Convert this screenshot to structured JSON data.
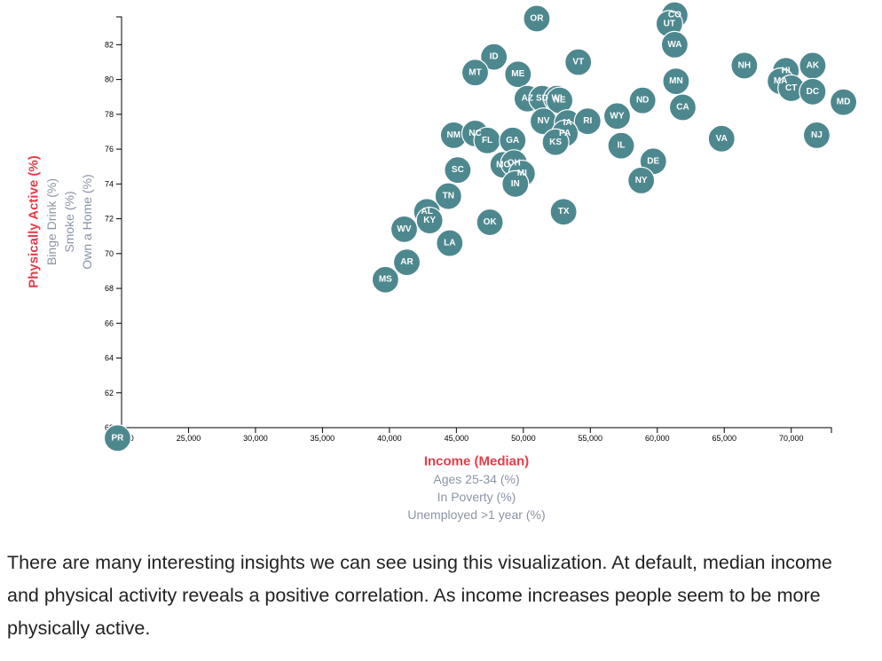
{
  "chart_data": {
    "type": "scatter",
    "x_axis": {
      "ticks": [
        20000,
        25000,
        30000,
        35000,
        40000,
        45000,
        50000,
        55000,
        60000,
        65000,
        70000
      ],
      "tick_labels": [
        "20,000",
        "25,000",
        "30,000",
        "35,000",
        "40,000",
        "45,000",
        "50,000",
        "55,000",
        "60,000",
        "65,000",
        "70,000"
      ],
      "range": [
        20000,
        73000
      ]
    },
    "y_axis": {
      "ticks": [
        60,
        62,
        64,
        66,
        68,
        70,
        72,
        74,
        76,
        78,
        80,
        82
      ],
      "tick_labels": [
        "60",
        "62",
        "64",
        "66",
        "68",
        "70",
        "72",
        "74",
        "76",
        "78",
        "80",
        "82"
      ],
      "range": [
        60,
        83.6
      ]
    },
    "x_labels": [
      {
        "text": "Income (Median)",
        "active": true
      },
      {
        "text": "Ages 25-34 (%)",
        "active": false
      },
      {
        "text": "In Poverty (%)",
        "active": false
      },
      {
        "text": "Unemployed >1 year (%)",
        "active": false
      }
    ],
    "y_labels": [
      {
        "text": "Physically Active (%)",
        "active": true
      },
      {
        "text": "Binge Drink (%)",
        "active": false
      },
      {
        "text": "Smoke (%)",
        "active": false
      },
      {
        "text": "Own a Home (%)",
        "active": false
      }
    ],
    "points": [
      {
        "state": "PR",
        "x": 19700,
        "y": 59.4
      },
      {
        "state": "OR",
        "x": 51000,
        "y": 83.5
      },
      {
        "state": "CO",
        "x": 61300,
        "y": 83.7
      },
      {
        "state": "UT",
        "x": 60900,
        "y": 83.2
      },
      {
        "state": "WA",
        "x": 61300,
        "y": 82.0
      },
      {
        "state": "ID",
        "x": 47800,
        "y": 81.3
      },
      {
        "state": "VT",
        "x": 54100,
        "y": 81.0
      },
      {
        "state": "MT",
        "x": 46400,
        "y": 80.4
      },
      {
        "state": "ME",
        "x": 49600,
        "y": 80.3
      },
      {
        "state": "NH",
        "x": 66500,
        "y": 80.8
      },
      {
        "state": "AK",
        "x": 71600,
        "y": 80.8
      },
      {
        "state": "HI",
        "x": 69600,
        "y": 80.5
      },
      {
        "state": "MA",
        "x": 69200,
        "y": 79.9
      },
      {
        "state": "CT",
        "x": 70000,
        "y": 79.5
      },
      {
        "state": "DC",
        "x": 71600,
        "y": 79.3
      },
      {
        "state": "MD",
        "x": 73900,
        "y": 78.7
      },
      {
        "state": "MN",
        "x": 61400,
        "y": 79.9
      },
      {
        "state": "ND",
        "x": 58900,
        "y": 78.8
      },
      {
        "state": "CA",
        "x": 61900,
        "y": 78.4
      },
      {
        "state": "AZ",
        "x": 50300,
        "y": 78.9
      },
      {
        "state": "SD",
        "x": 51400,
        "y": 78.9
      },
      {
        "state": "WI",
        "x": 52500,
        "y": 78.9
      },
      {
        "state": "NE",
        "x": 52700,
        "y": 78.8
      },
      {
        "state": "WY",
        "x": 57000,
        "y": 77.9
      },
      {
        "state": "NV",
        "x": 51500,
        "y": 77.6
      },
      {
        "state": "IA",
        "x": 53300,
        "y": 77.5
      },
      {
        "state": "RI",
        "x": 54800,
        "y": 77.6
      },
      {
        "state": "PA",
        "x": 53100,
        "y": 76.9
      },
      {
        "state": "KS",
        "x": 52400,
        "y": 76.4
      },
      {
        "state": "NM",
        "x": 44800,
        "y": 76.8
      },
      {
        "state": "NC",
        "x": 46400,
        "y": 76.9
      },
      {
        "state": "FL",
        "x": 47300,
        "y": 76.5
      },
      {
        "state": "GA",
        "x": 49200,
        "y": 76.5
      },
      {
        "state": "VA",
        "x": 64800,
        "y": 76.6
      },
      {
        "state": "NJ",
        "x": 71900,
        "y": 76.8
      },
      {
        "state": "IL",
        "x": 57300,
        "y": 76.2
      },
      {
        "state": "DE",
        "x": 59700,
        "y": 75.3
      },
      {
        "state": "MO",
        "x": 48500,
        "y": 75.1
      },
      {
        "state": "OH",
        "x": 49300,
        "y": 75.2
      },
      {
        "state": "MI",
        "x": 49900,
        "y": 74.6
      },
      {
        "state": "IN",
        "x": 49400,
        "y": 74.0
      },
      {
        "state": "NY",
        "x": 58800,
        "y": 74.2
      },
      {
        "state": "SC",
        "x": 45100,
        "y": 74.8
      },
      {
        "state": "TN",
        "x": 44400,
        "y": 73.3
      },
      {
        "state": "AL",
        "x": 42800,
        "y": 72.4
      },
      {
        "state": "KY",
        "x": 43000,
        "y": 71.9
      },
      {
        "state": "TX",
        "x": 53000,
        "y": 72.4
      },
      {
        "state": "OK",
        "x": 47500,
        "y": 71.8
      },
      {
        "state": "WV",
        "x": 41100,
        "y": 71.4
      },
      {
        "state": "LA",
        "x": 44500,
        "y": 70.6
      },
      {
        "state": "AR",
        "x": 41300,
        "y": 69.5
      },
      {
        "state": "MS",
        "x": 39700,
        "y": 68.5
      }
    ],
    "colors": {
      "dot": "#4e888f",
      "active_label": "#e53d4a",
      "inactive_label": "#8b93a6"
    }
  },
  "description": "There are many interesting insights we can see using this visualization. At default, median income and physical activity reveals a positive correlation. As income increases people seem to be more physically active."
}
